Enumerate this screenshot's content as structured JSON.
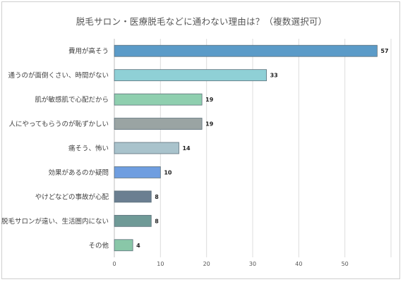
{
  "chart_data": {
    "type": "bar",
    "orientation": "horizontal",
    "title": "脱毛サロン・医療脱毛などに通わない理由は？（複数選択可）",
    "categories": [
      "費用が高そう",
      "通うのが面倒くさい、時間がない",
      "肌が敏感肌で心配だから",
      "人にやってもらうのが恥ずかしい",
      "痛そう、怖い",
      "効果があるのか疑問",
      "やけどなどの事故が心配",
      "脱毛サロンが遠い、生活圏内にない",
      "その他"
    ],
    "values": [
      57,
      33,
      19,
      19,
      14,
      10,
      8,
      8,
      4
    ],
    "colors": [
      "#5b9bc8",
      "#8fd0d6",
      "#8fcfaf",
      "#9aa4a3",
      "#a9c3cc",
      "#6f9ee0",
      "#6b7f91",
      "#6f9a97",
      "#89c7a8"
    ],
    "xlim": [
      0,
      60
    ],
    "xticks": [
      0,
      10,
      20,
      30,
      40,
      50
    ],
    "grid": true,
    "legend": "none"
  }
}
